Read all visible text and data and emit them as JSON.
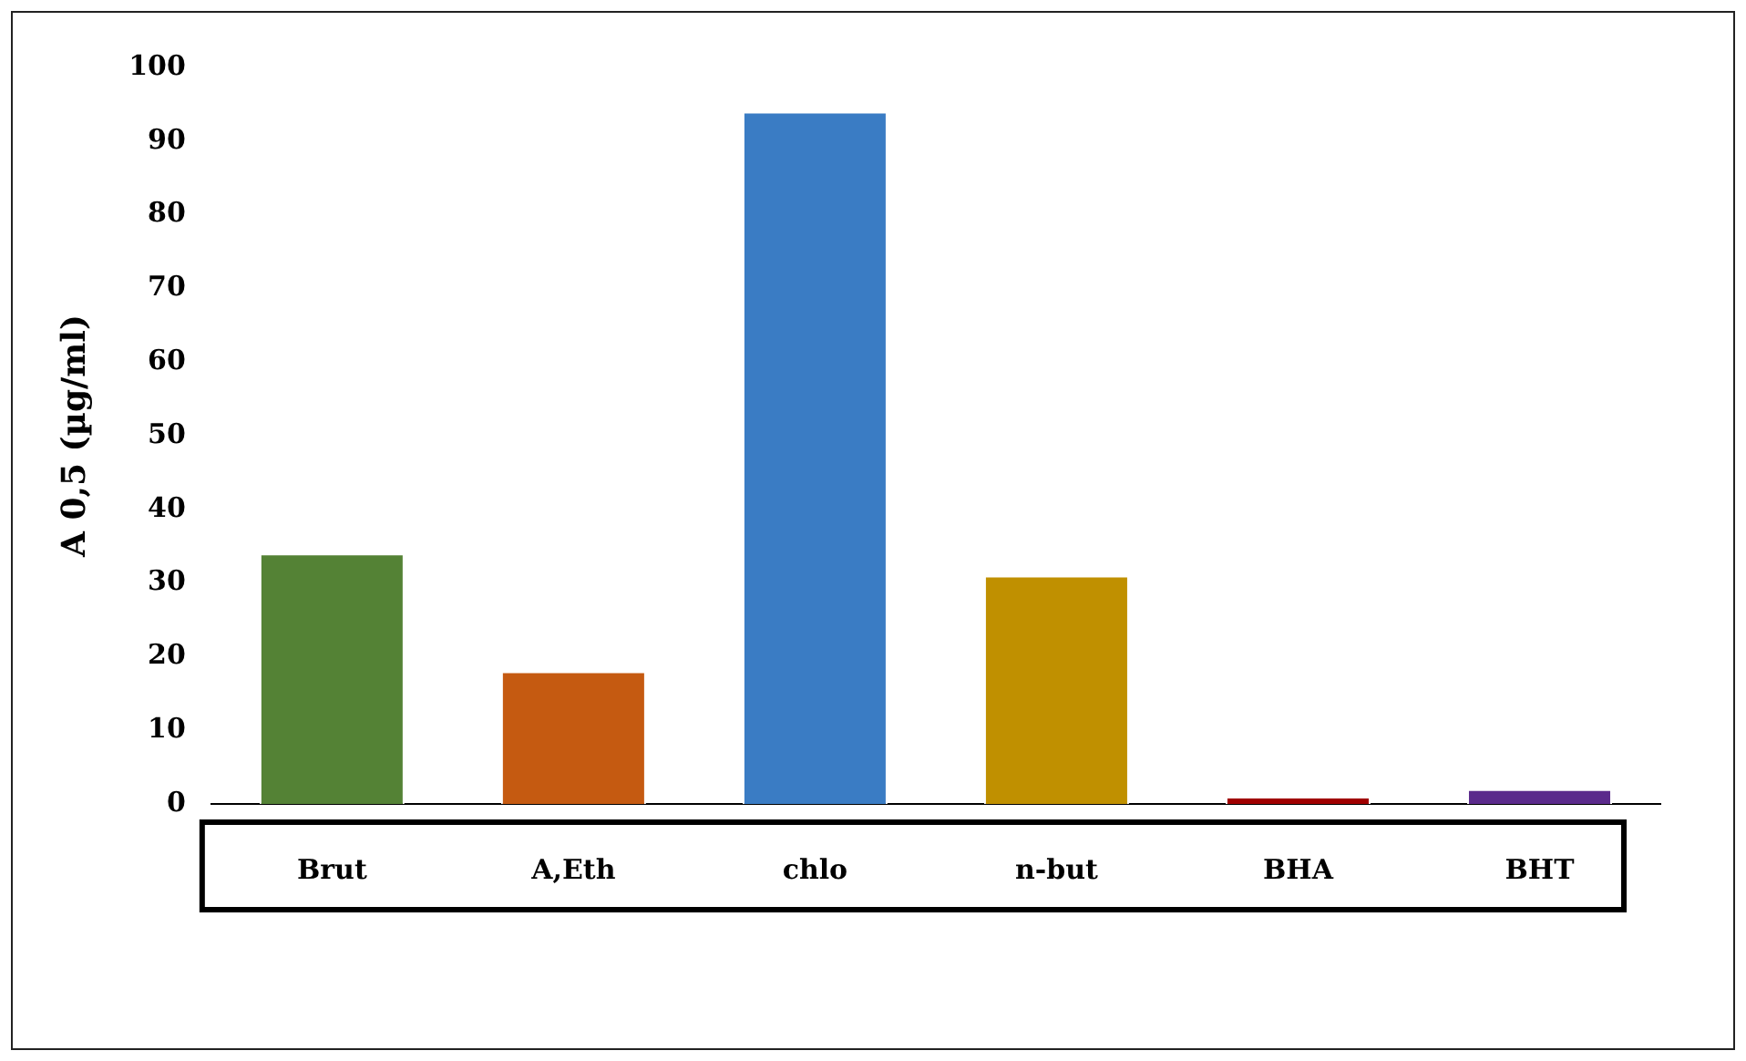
{
  "chart_data": {
    "type": "bar",
    "ylabel": "A 0,5 (µg/ml)",
    "categories": [
      "Brut",
      "A,Eth",
      "chlo",
      "n-but",
      "BHA",
      "BHT"
    ],
    "values": [
      34,
      18,
      94,
      31,
      1,
      2
    ],
    "colors": [
      "#548235",
      "#c55a11",
      "#3a7cc4",
      "#c09000",
      "#a00000",
      "#5b2a8c"
    ],
    "ylim": [
      0,
      100
    ],
    "yticks": [
      0,
      10,
      20,
      30,
      40,
      50,
      60,
      70,
      80,
      90,
      100
    ],
    "grid": false,
    "legend": false
  }
}
